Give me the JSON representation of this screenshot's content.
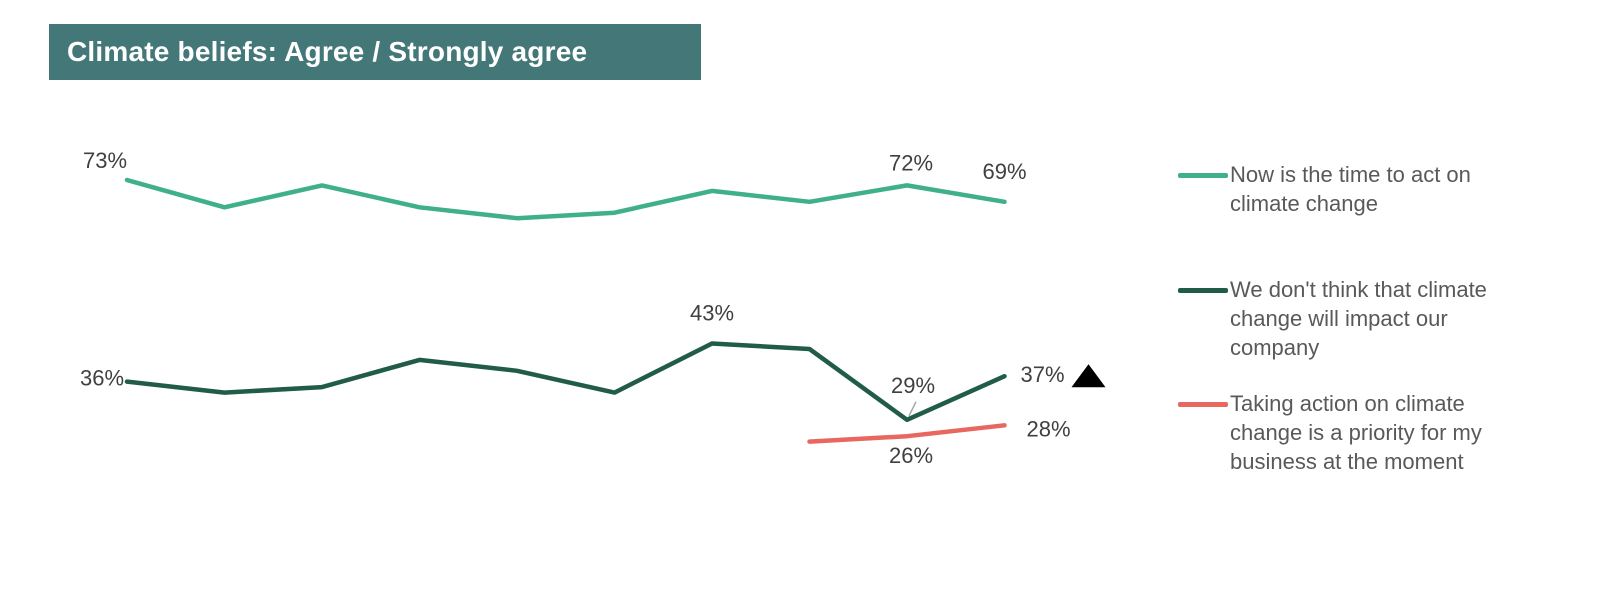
{
  "title": "Climate beliefs: Agree / Strongly agree",
  "chart_data": {
    "type": "line",
    "title": "Climate beliefs: Agree / Strongly agree",
    "xlabel": "",
    "ylabel": "",
    "ylim": [
      20,
      80
    ],
    "grid": false,
    "legend_position": "right",
    "x": [
      1,
      2,
      3,
      4,
      5,
      6,
      7,
      8,
      9,
      10
    ],
    "series": [
      {
        "name": "Now is the time to act on climate change",
        "color": "#3fb08b",
        "values": [
          73,
          68,
          72,
          68,
          66,
          67,
          71,
          69,
          72,
          69
        ]
      },
      {
        "name": "We don't think that climate change will impact our company",
        "color": "#215c47",
        "values": [
          36,
          34,
          35,
          40,
          38,
          34,
          43,
          42,
          29,
          37
        ]
      },
      {
        "name": "Taking action on climate change is a priority for my business at the moment",
        "color": "#e8675e",
        "values": [
          null,
          null,
          null,
          null,
          null,
          null,
          null,
          25,
          26,
          28
        ]
      }
    ],
    "data_labels": [
      {
        "series": 0,
        "index": 0,
        "text": "73%"
      },
      {
        "series": 0,
        "index": 8,
        "text": "72%"
      },
      {
        "series": 0,
        "index": 9,
        "text": "69%"
      },
      {
        "series": 1,
        "index": 0,
        "text": "36%"
      },
      {
        "series": 1,
        "index": 6,
        "text": "43%"
      },
      {
        "series": 1,
        "index": 8,
        "text": "29%"
      },
      {
        "series": 1,
        "index": 9,
        "text": "37%"
      },
      {
        "series": 2,
        "index": 8,
        "text": "26%"
      },
      {
        "series": 2,
        "index": 9,
        "text": "28%"
      }
    ],
    "annotations": [
      {
        "series": 1,
        "index": 9,
        "marker": "up-triangle",
        "meaning": "significant increase"
      }
    ]
  }
}
